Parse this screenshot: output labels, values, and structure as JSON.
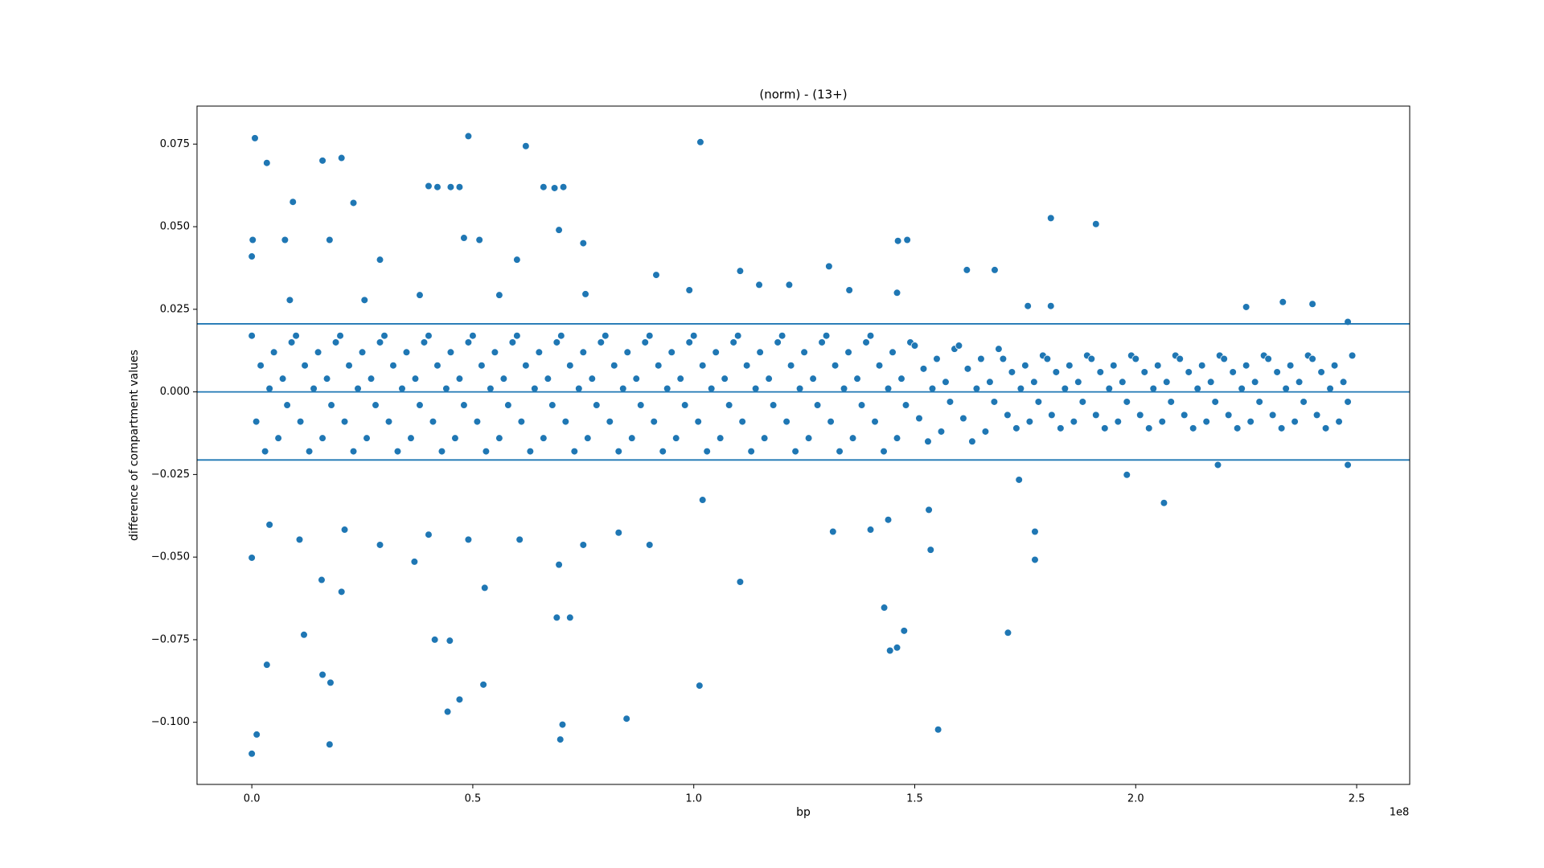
{
  "chart_data": {
    "type": "scatter",
    "title": "(norm) - (13+)",
    "x_label": "bp",
    "y_label": "difference of compartment values",
    "x_offset_label": "1e8",
    "color": "#1f77b4",
    "xlim": [
      -12400000,
      262000000
    ],
    "ylim": [
      -0.1188,
      0.0865
    ],
    "xticks": [
      {
        "value": 0,
        "label": "0.0"
      },
      {
        "value": 50000000,
        "label": "0.5"
      },
      {
        "value": 100000000,
        "label": "1.0"
      },
      {
        "value": 150000000,
        "label": "1.5"
      },
      {
        "value": 200000000,
        "label": "2.0"
      },
      {
        "value": 250000000,
        "label": "2.5"
      }
    ],
    "yticks": [
      {
        "value": -0.1,
        "label": "−0.100"
      },
      {
        "value": -0.075,
        "label": "−0.075"
      },
      {
        "value": -0.05,
        "label": "−0.050"
      },
      {
        "value": -0.025,
        "label": "−0.025"
      },
      {
        "value": 0,
        "label": "0.000"
      },
      {
        "value": 0.025,
        "label": "0.025"
      },
      {
        "value": 0.05,
        "label": "0.050"
      },
      {
        "value": 0.075,
        "label": "0.075"
      }
    ],
    "hlines": [
      0.0206,
      0,
      -0.0206
    ],
    "x": [
      700000,
      3400000,
      16000000,
      20300000,
      49000000,
      62000000,
      101500000,
      9300000,
      23000000,
      40000000,
      42000000,
      45000000,
      47000000,
      66000000,
      68500000,
      70500000,
      200000,
      7500000,
      17600000,
      48000000,
      51500000,
      69500000,
      75000000,
      146200000,
      148300000,
      180800000,
      191000000,
      0,
      60000000,
      29000000,
      130600000,
      161800000,
      168100000,
      110500000,
      91500000,
      0,
      1100000,
      17600000,
      44300000,
      47000000,
      69800000,
      70300000,
      84800000,
      101300000,
      52400000,
      16000000,
      17800000,
      3400000,
      11800000,
      41400000,
      44800000,
      72000000,
      69000000,
      143100000,
      144400000,
      146000000,
      147600000,
      155300000,
      171100000,
      110500000,
      177200000,
      177200000,
      206400000,
      0,
      20300000,
      15800000,
      52700000,
      36800000,
      153600000,
      131500000,
      90000000,
      75000000,
      69500000,
      4000000,
      10800000,
      21000000,
      29000000,
      40000000,
      49000000,
      60600000,
      83000000,
      140000000,
      144000000,
      153200000,
      102000000,
      173600000,
      198000000,
      218600000,
      248000000,
      225000000,
      233300000,
      240000000,
      248000000,
      175600000,
      180800000,
      114800000,
      121600000,
      135200000,
      146000000,
      75500000,
      8600000,
      25500000,
      38000000,
      56000000,
      99000000,
      0,
      1000000.0,
      2000000.0,
      3000000.0,
      4000000.0,
      5000000.0,
      6000000.0,
      7000000.0,
      8000000.0,
      9000000.0,
      10000000.0,
      11000000.0,
      12000000.0,
      13000000.0,
      14000000.0,
      15000000.0,
      16000000.0,
      17000000.0,
      18000000.0,
      19000000.0,
      20000000.0,
      21000000.0,
      22000000.0,
      23000000.0,
      24000000.0,
      25000000.0,
      26000000.0,
      27000000.0,
      28000000.0,
      29000000.0,
      30000000.0,
      31000000.0,
      32000000.0,
      33000000.0,
      34000000.0,
      35000000.0,
      36000000.0,
      37000000.0,
      38000000.0,
      39000000.0,
      40000000.0,
      41000000.0,
      42000000.0,
      43000000.0,
      44000000.0,
      45000000.0,
      46000000.0,
      47000000.0,
      48000000.0,
      49000000.0,
      50000000.0,
      51000000.0,
      52000000.0,
      53000000.0,
      54000000.0,
      55000000.0,
      56000000.0,
      57000000.0,
      58000000.0,
      59000000.0,
      60000000.0,
      61000000.0,
      62000000.0,
      63000000.0,
      64000000.0,
      65000000.0,
      66000000.0,
      67000000.0,
      68000000.0,
      69000000.0,
      70000000.0,
      71000000.0,
      72000000.0,
      73000000.0,
      74000000.0,
      75000000.0,
      76000000.0,
      77000000.0,
      78000000.0,
      79000000.0,
      80000000.0,
      81000000.0,
      82000000.0,
      83000000.0,
      84000000.0,
      85000000.0,
      86000000.0,
      87000000.0,
      88000000.0,
      89000000.0,
      90000000.0,
      91000000.0,
      92000000.0,
      93000000.0,
      94000000.0,
      95000000.0,
      96000000.0,
      97000000.0,
      98000000.0,
      99000000.0,
      100000000.0,
      101000000.0,
      102000000.0,
      103000000.0,
      104000000.0,
      105000000.0,
      106000000.0,
      107000000.0,
      108000000.0,
      109000000.0,
      110000000.0,
      111000000.0,
      112000000.0,
      113000000.0,
      114000000.0,
      115000000.0,
      116000000.0,
      117000000.0,
      118000000.0,
      119000000.0,
      120000000.0,
      121000000.0,
      122000000.0,
      123000000.0,
      124000000.0,
      125000000.0,
      126000000.0,
      127000000.0,
      128000000.0,
      129000000.0,
      130000000.0,
      131000000.0,
      132000000.0,
      133000000.0,
      134000000.0,
      135000000.0,
      136000000.0,
      137000000.0,
      138000000.0,
      139000000.0,
      140000000.0,
      141000000.0,
      142000000.0,
      143000000.0,
      144000000.0,
      145000000.0,
      146000000.0,
      147000000.0,
      148000000.0,
      149000000.0,
      150000000.0,
      151000000.0,
      152000000.0,
      153000000.0,
      154000000.0,
      155000000.0,
      156000000.0,
      157000000.0,
      158000000.0,
      159000000.0,
      160000000.0,
      161000000.0,
      162000000.0,
      163000000.0,
      164000000.0,
      165000000.0,
      166000000.0,
      167000000.0,
      168000000.0,
      169000000.0,
      170000000.0,
      171000000.0,
      172000000.0,
      173000000.0,
      174000000.0,
      175000000.0,
      176000000.0,
      177000000.0,
      178000000.0,
      179000000.0,
      180000000.0,
      181000000.0,
      182000000.0,
      183000000.0,
      184000000.0,
      185000000.0,
      186000000.0,
      187000000.0,
      188000000.0,
      189000000.0,
      190000000.0,
      191000000.0,
      192000000.0,
      193000000.0,
      194000000.0,
      195000000.0,
      196000000.0,
      197000000.0,
      198000000.0,
      199000000.0,
      200000000.0,
      201000000.0,
      202000000.0,
      203000000.0,
      204000000.0,
      205000000.0,
      206000000.0,
      207000000.0,
      208000000.0,
      209000000.0,
      210000000.0,
      211000000.0,
      212000000.0,
      213000000.0,
      214000000.0,
      215000000.0,
      216000000.0,
      217000000.0,
      218000000.0,
      219000000.0,
      220000000.0,
      221000000.0,
      222000000.0,
      223000000.0,
      224000000.0,
      225000000.0,
      226000000.0,
      227000000.0,
      228000000.0,
      229000000.0,
      230000000.0,
      231000000.0,
      232000000.0,
      233000000.0,
      234000000.0,
      235000000.0,
      236000000.0,
      237000000.0,
      238000000.0,
      239000000.0,
      240000000.0,
      241000000.0,
      242000000.0,
      243000000.0,
      244000000.0,
      245000000.0,
      246000000.0,
      247000000.0,
      248000000.0,
      249000000.0
    ],
    "values": [
      0.0768,
      0.0693,
      0.07,
      0.0708,
      0.0774,
      0.0744,
      0.0756,
      0.0575,
      0.0572,
      0.0623,
      0.062,
      0.062,
      0.062,
      0.062,
      0.0617,
      0.062,
      0.046,
      0.046,
      0.046,
      0.0466,
      0.046,
      0.049,
      0.045,
      0.0457,
      0.046,
      0.0526,
      0.0508,
      0.041,
      0.04,
      0.04,
      0.038,
      0.0369,
      0.0369,
      0.0366,
      0.0354,
      -0.1095,
      -0.1037,
      -0.1067,
      -0.0968,
      -0.0931,
      -0.1052,
      -0.1007,
      -0.0989,
      -0.0889,
      -0.0886,
      -0.0856,
      -0.088,
      -0.0826,
      -0.0735,
      -0.075,
      -0.0753,
      -0.0683,
      -0.0683,
      -0.0653,
      -0.0783,
      -0.0774,
      -0.0723,
      -0.1022,
      -0.0729,
      -0.0575,
      -0.0508,
      -0.0423,
      -0.0336,
      -0.0502,
      -0.0605,
      -0.0569,
      -0.0593,
      -0.0514,
      -0.0478,
      -0.0423,
      -0.0463,
      -0.0463,
      -0.0523,
      -0.0402,
      -0.0447,
      -0.0417,
      -0.0463,
      -0.0432,
      -0.0447,
      -0.0447,
      -0.0426,
      -0.0417,
      -0.0387,
      -0.0357,
      -0.0327,
      -0.0266,
      -0.0251,
      -0.0221,
      -0.0221,
      0.0257,
      0.0272,
      0.0266,
      0.0212,
      0.026,
      0.026,
      0.0324,
      0.0324,
      0.0308,
      0.03,
      0.0296,
      0.0278,
      0.0278,
      0.0293,
      0.0293,
      0.0308,
      0.017,
      -0.009,
      0.008,
      -0.018,
      0.001,
      0.012,
      -0.014,
      0.004,
      -0.004,
      0.015,
      0.017,
      -0.009,
      0.008,
      -0.018,
      0.001,
      0.012,
      -0.014,
      0.004,
      -0.004,
      0.015,
      0.017,
      -0.009,
      0.008,
      -0.018,
      0.001,
      0.012,
      -0.014,
      0.004,
      -0.004,
      0.015,
      0.017,
      -0.009,
      0.008,
      -0.018,
      0.001,
      0.012,
      -0.014,
      0.004,
      -0.004,
      0.015,
      0.017,
      -0.009,
      0.008,
      -0.018,
      0.001,
      0.012,
      -0.014,
      0.004,
      -0.004,
      0.015,
      0.017,
      -0.009,
      0.008,
      -0.018,
      0.001,
      0.012,
      -0.014,
      0.004,
      -0.004,
      0.015,
      0.017,
      -0.009,
      0.008,
      -0.018,
      0.001,
      0.012,
      -0.014,
      0.004,
      -0.004,
      0.015,
      0.017,
      -0.009,
      0.008,
      -0.018,
      0.001,
      0.012,
      -0.014,
      0.004,
      -0.004,
      0.015,
      0.017,
      -0.009,
      0.008,
      -0.018,
      0.001,
      0.012,
      -0.014,
      0.004,
      -0.004,
      0.015,
      0.017,
      -0.009,
      0.008,
      -0.018,
      0.001,
      0.012,
      -0.014,
      0.004,
      -0.004,
      0.015,
      0.017,
      -0.009,
      0.008,
      -0.018,
      0.001,
      0.012,
      -0.014,
      0.004,
      -0.004,
      0.015,
      0.017,
      -0.009,
      0.008,
      -0.018,
      0.001,
      0.012,
      -0.014,
      0.004,
      -0.004,
      0.015,
      0.017,
      -0.009,
      0.008,
      -0.018,
      0.001,
      0.012,
      -0.014,
      0.004,
      -0.004,
      0.015,
      0.017,
      -0.009,
      0.008,
      -0.018,
      0.001,
      0.012,
      -0.014,
      0.004,
      -0.004,
      0.015,
      0.017,
      -0.009,
      0.008,
      -0.018,
      0.001,
      0.012,
      -0.014,
      0.004,
      -0.004,
      0.015,
      0.014,
      -0.008,
      0.007,
      -0.015,
      0.001,
      0.01,
      -0.012,
      0.003,
      -0.003,
      0.013,
      0.014,
      -0.008,
      0.007,
      -0.015,
      0.001,
      0.01,
      -0.012,
      0.003,
      -0.003,
      0.013,
      0.01,
      -0.007,
      0.006,
      -0.011,
      0.001,
      0.008,
      -0.009,
      0.003,
      -0.003,
      0.011,
      0.01,
      -0.007,
      0.006,
      -0.011,
      0.001,
      0.008,
      -0.009,
      0.003,
      -0.003,
      0.011,
      0.01,
      -0.007,
      0.006,
      -0.011,
      0.001,
      0.008,
      -0.009,
      0.003,
      -0.003,
      0.011,
      0.01,
      -0.007,
      0.006,
      -0.011,
      0.001,
      0.008,
      -0.009,
      0.003,
      -0.003,
      0.011,
      0.01,
      -0.007,
      0.006,
      -0.011,
      0.001,
      0.008,
      -0.009,
      0.003,
      -0.003,
      0.011,
      0.01,
      -0.007,
      0.006,
      -0.011,
      0.001,
      0.008,
      -0.009,
      0.003,
      -0.003,
      0.011,
      0.01,
      -0.007,
      0.006,
      -0.011,
      0.001,
      0.008,
      -0.009,
      0.003,
      -0.003,
      0.011,
      0.01,
      -0.007,
      0.006,
      -0.011,
      0.001,
      0.008,
      -0.009,
      0.003,
      -0.003,
      0.011
    ]
  }
}
